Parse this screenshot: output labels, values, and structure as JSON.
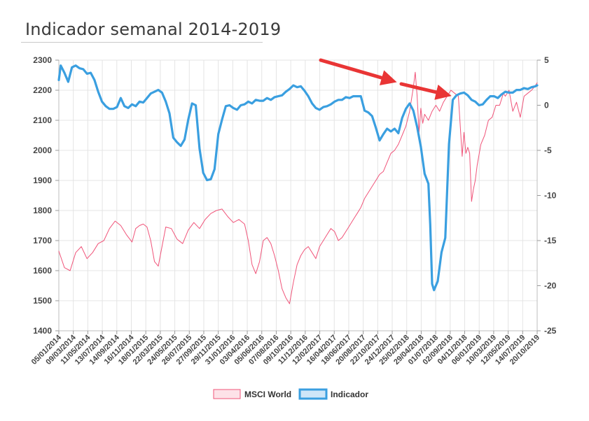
{
  "title": "Indicador semanal 2014-2019",
  "chart_data": {
    "type": "line",
    "title": "Indicador semanal 2014-2019",
    "left_axis": {
      "min": 1400,
      "max": 2300,
      "ticks": [
        1400,
        1500,
        1600,
        1700,
        1800,
        1900,
        2000,
        2100,
        2200,
        2300
      ]
    },
    "right_axis": {
      "min": -25,
      "max": 5,
      "ticks": [
        -25,
        -20,
        -15,
        -10,
        -5,
        0,
        5
      ]
    },
    "x_tick_labels": [
      "05/01/2014",
      "09/03/2014",
      "11/05/2014",
      "13/07/2014",
      "14/09/2014",
      "16/11/2014",
      "18/01/2015",
      "22/03/2015",
      "24/05/2015",
      "26/07/2015",
      "27/09/2015",
      "29/11/2015",
      "31/01/2016",
      "03/04/2016",
      "05/06/2016",
      "07/08/2016",
      "09/10/2016",
      "11/12/2016",
      "12/02/2017",
      "16/04/2017",
      "18/06/2017",
      "20/08/2017",
      "22/10/2017",
      "24/12/2017",
      "25/02/2018",
      "29/04/2018",
      "01/07/2018",
      "02/09/2018",
      "04/11/2018",
      "06/01/2019",
      "10/03/2019",
      "12/05/2019",
      "14/07/2019",
      "20/10/2019"
    ],
    "series": [
      {
        "name": "MSCI World",
        "axis": "left",
        "color": "#f0557a",
        "values": [
          [
            0,
            1665
          ],
          [
            3,
            1610
          ],
          [
            6,
            1600
          ],
          [
            9,
            1660
          ],
          [
            12,
            1680
          ],
          [
            15,
            1640
          ],
          [
            18,
            1660
          ],
          [
            21,
            1690
          ],
          [
            24,
            1700
          ],
          [
            27,
            1740
          ],
          [
            30,
            1765
          ],
          [
            33,
            1750
          ],
          [
            36,
            1720
          ],
          [
            39,
            1695
          ],
          [
            41,
            1740
          ],
          [
            43,
            1750
          ],
          [
            45,
            1755
          ],
          [
            47,
            1745
          ],
          [
            49,
            1700
          ],
          [
            51,
            1630
          ],
          [
            53,
            1615
          ],
          [
            55,
            1680
          ],
          [
            57,
            1745
          ],
          [
            60,
            1740
          ],
          [
            63,
            1705
          ],
          [
            66,
            1690
          ],
          [
            69,
            1735
          ],
          [
            72,
            1760
          ],
          [
            75,
            1740
          ],
          [
            78,
            1770
          ],
          [
            81,
            1790
          ],
          [
            84,
            1800
          ],
          [
            87,
            1805
          ],
          [
            90,
            1780
          ],
          [
            93,
            1760
          ],
          [
            96,
            1770
          ],
          [
            99,
            1755
          ],
          [
            101,
            1700
          ],
          [
            103,
            1620
          ],
          [
            105,
            1590
          ],
          [
            107,
            1630
          ],
          [
            109,
            1700
          ],
          [
            111,
            1710
          ],
          [
            113,
            1690
          ],
          [
            115,
            1650
          ],
          [
            117,
            1600
          ],
          [
            119,
            1540
          ],
          [
            121,
            1510
          ],
          [
            123,
            1490
          ],
          [
            125,
            1560
          ],
          [
            127,
            1620
          ],
          [
            129,
            1650
          ],
          [
            131,
            1670
          ],
          [
            133,
            1680
          ],
          [
            135,
            1660
          ],
          [
            137,
            1640
          ],
          [
            139,
            1680
          ],
          [
            141,
            1700
          ],
          [
            143,
            1720
          ],
          [
            145,
            1740
          ],
          [
            147,
            1730
          ],
          [
            149,
            1700
          ],
          [
            151,
            1710
          ],
          [
            153,
            1730
          ],
          [
            155,
            1750
          ],
          [
            157,
            1770
          ],
          [
            159,
            1790
          ],
          [
            161,
            1810
          ],
          [
            163,
            1840
          ],
          [
            165,
            1860
          ],
          [
            167,
            1880
          ],
          [
            169,
            1900
          ],
          [
            171,
            1920
          ],
          [
            173,
            1930
          ],
          [
            175,
            1960
          ],
          [
            177,
            1990
          ],
          [
            179,
            2000
          ],
          [
            181,
            2020
          ],
          [
            183,
            2050
          ],
          [
            185,
            2080
          ],
          [
            187,
            2130
          ],
          [
            189,
            2210
          ],
          [
            190,
            2260
          ],
          [
            191,
            2180
          ],
          [
            192,
            2060
          ],
          [
            193,
            2140
          ],
          [
            194,
            2090
          ],
          [
            195,
            2120
          ],
          [
            197,
            2100
          ],
          [
            199,
            2130
          ],
          [
            201,
            2150
          ],
          [
            203,
            2130
          ],
          [
            205,
            2160
          ],
          [
            207,
            2180
          ],
          [
            209,
            2200
          ],
          [
            211,
            2190
          ],
          [
            213,
            2180
          ],
          [
            215,
            1980
          ],
          [
            216,
            2060
          ],
          [
            217,
            1990
          ],
          [
            218,
            2010
          ],
          [
            219,
            1990
          ],
          [
            220,
            1830
          ],
          [
            221,
            1870
          ],
          [
            222,
            1900
          ],
          [
            223,
            1950
          ],
          [
            225,
            2020
          ],
          [
            227,
            2050
          ],
          [
            229,
            2100
          ],
          [
            231,
            2110
          ],
          [
            233,
            2150
          ],
          [
            235,
            2150
          ],
          [
            237,
            2190
          ],
          [
            238,
            2180
          ],
          [
            240,
            2200
          ],
          [
            242,
            2130
          ],
          [
            244,
            2160
          ],
          [
            246,
            2110
          ],
          [
            248,
            2180
          ],
          [
            250,
            2190
          ],
          [
            252,
            2200
          ],
          [
            254,
            2215
          ],
          [
            255,
            2225
          ]
        ]
      },
      {
        "name": "Indicador",
        "axis": "right",
        "color": "#3a9fe0",
        "values": [
          [
            0,
            2.8
          ],
          [
            1,
            4.4
          ],
          [
            3,
            3.6
          ],
          [
            5,
            2.6
          ],
          [
            7,
            4.2
          ],
          [
            9,
            4.4
          ],
          [
            11,
            4.1
          ],
          [
            13,
            4.0
          ],
          [
            15,
            3.5
          ],
          [
            17,
            3.6
          ],
          [
            19,
            2.8
          ],
          [
            21,
            1.5
          ],
          [
            23,
            0.4
          ],
          [
            25,
            -0.1
          ],
          [
            27,
            -0.4
          ],
          [
            29,
            -0.4
          ],
          [
            31,
            -0.2
          ],
          [
            33,
            0.8
          ],
          [
            35,
            -0.1
          ],
          [
            37,
            -0.3
          ],
          [
            39,
            0.1
          ],
          [
            41,
            -0.1
          ],
          [
            43,
            0.4
          ],
          [
            45,
            0.3
          ],
          [
            47,
            0.8
          ],
          [
            49,
            1.3
          ],
          [
            51,
            1.5
          ],
          [
            53,
            1.7
          ],
          [
            55,
            1.4
          ],
          [
            57,
            0.4
          ],
          [
            59,
            -0.9
          ],
          [
            61,
            -3.6
          ],
          [
            63,
            -4.1
          ],
          [
            65,
            -4.5
          ],
          [
            67,
            -3.8
          ],
          [
            69,
            -1.6
          ],
          [
            71,
            0.2
          ],
          [
            73,
            0.0
          ],
          [
            75,
            -4.8
          ],
          [
            77,
            -7.5
          ],
          [
            79,
            -8.3
          ],
          [
            81,
            -8.2
          ],
          [
            83,
            -7.1
          ],
          [
            85,
            -3.2
          ],
          [
            87,
            -1.6
          ],
          [
            89,
            -0.1
          ],
          [
            91,
            0.0
          ],
          [
            93,
            -0.3
          ],
          [
            95,
            -0.5
          ],
          [
            97,
            0.0
          ],
          [
            99,
            0.1
          ],
          [
            101,
            0.4
          ],
          [
            103,
            0.2
          ],
          [
            105,
            0.6
          ],
          [
            107,
            0.5
          ],
          [
            109,
            0.5
          ],
          [
            111,
            0.8
          ],
          [
            113,
            0.6
          ],
          [
            115,
            0.9
          ],
          [
            117,
            1.0
          ],
          [
            119,
            1.1
          ],
          [
            121,
            1.5
          ],
          [
            123,
            1.8
          ],
          [
            125,
            2.2
          ],
          [
            127,
            2.0
          ],
          [
            129,
            2.1
          ],
          [
            131,
            1.6
          ],
          [
            133,
            1.0
          ],
          [
            135,
            0.2
          ],
          [
            137,
            -0.3
          ],
          [
            139,
            -0.5
          ],
          [
            141,
            -0.2
          ],
          [
            143,
            -0.1
          ],
          [
            145,
            0.1
          ],
          [
            147,
            0.4
          ],
          [
            149,
            0.6
          ],
          [
            151,
            0.6
          ],
          [
            153,
            0.9
          ],
          [
            155,
            0.8
          ],
          [
            157,
            1.0
          ],
          [
            159,
            1.0
          ],
          [
            161,
            1.0
          ],
          [
            163,
            -0.6
          ],
          [
            165,
            -0.8
          ],
          [
            167,
            -1.2
          ],
          [
            169,
            -2.5
          ],
          [
            171,
            -3.9
          ],
          [
            173,
            -3.2
          ],
          [
            175,
            -2.6
          ],
          [
            177,
            -2.9
          ],
          [
            179,
            -2.6
          ],
          [
            181,
            -3.1
          ],
          [
            183,
            -1.4
          ],
          [
            185,
            -0.4
          ],
          [
            187,
            0.2
          ],
          [
            189,
            -0.6
          ],
          [
            191,
            -2.4
          ],
          [
            193,
            -4.6
          ],
          [
            195,
            -7.6
          ],
          [
            197,
            -8.7
          ],
          [
            198,
            -13.2
          ],
          [
            199,
            -19.8
          ],
          [
            200,
            -20.5
          ],
          [
            202,
            -19.5
          ],
          [
            204,
            -16.3
          ],
          [
            206,
            -14.7
          ],
          [
            208,
            -4.3
          ],
          [
            210,
            0.6
          ],
          [
            212,
            1.1
          ],
          [
            214,
            1.3
          ],
          [
            216,
            1.4
          ],
          [
            218,
            1.1
          ],
          [
            220,
            0.6
          ],
          [
            222,
            0.4
          ],
          [
            224,
            0.0
          ],
          [
            226,
            0.1
          ],
          [
            228,
            0.6
          ],
          [
            230,
            1.0
          ],
          [
            232,
            1.0
          ],
          [
            234,
            0.8
          ],
          [
            236,
            1.2
          ],
          [
            238,
            1.5
          ],
          [
            240,
            1.4
          ],
          [
            242,
            1.4
          ],
          [
            244,
            1.7
          ],
          [
            246,
            1.7
          ],
          [
            248,
            1.9
          ],
          [
            250,
            1.8
          ],
          [
            252,
            2.0
          ],
          [
            254,
            2.1
          ],
          [
            255,
            2.2
          ]
        ]
      }
    ],
    "legend": {
      "placement": "bottom-center",
      "items": [
        "MSCI World",
        "Indicador"
      ]
    },
    "annotations": [
      "red-arrow-1",
      "red-arrow-2"
    ]
  }
}
